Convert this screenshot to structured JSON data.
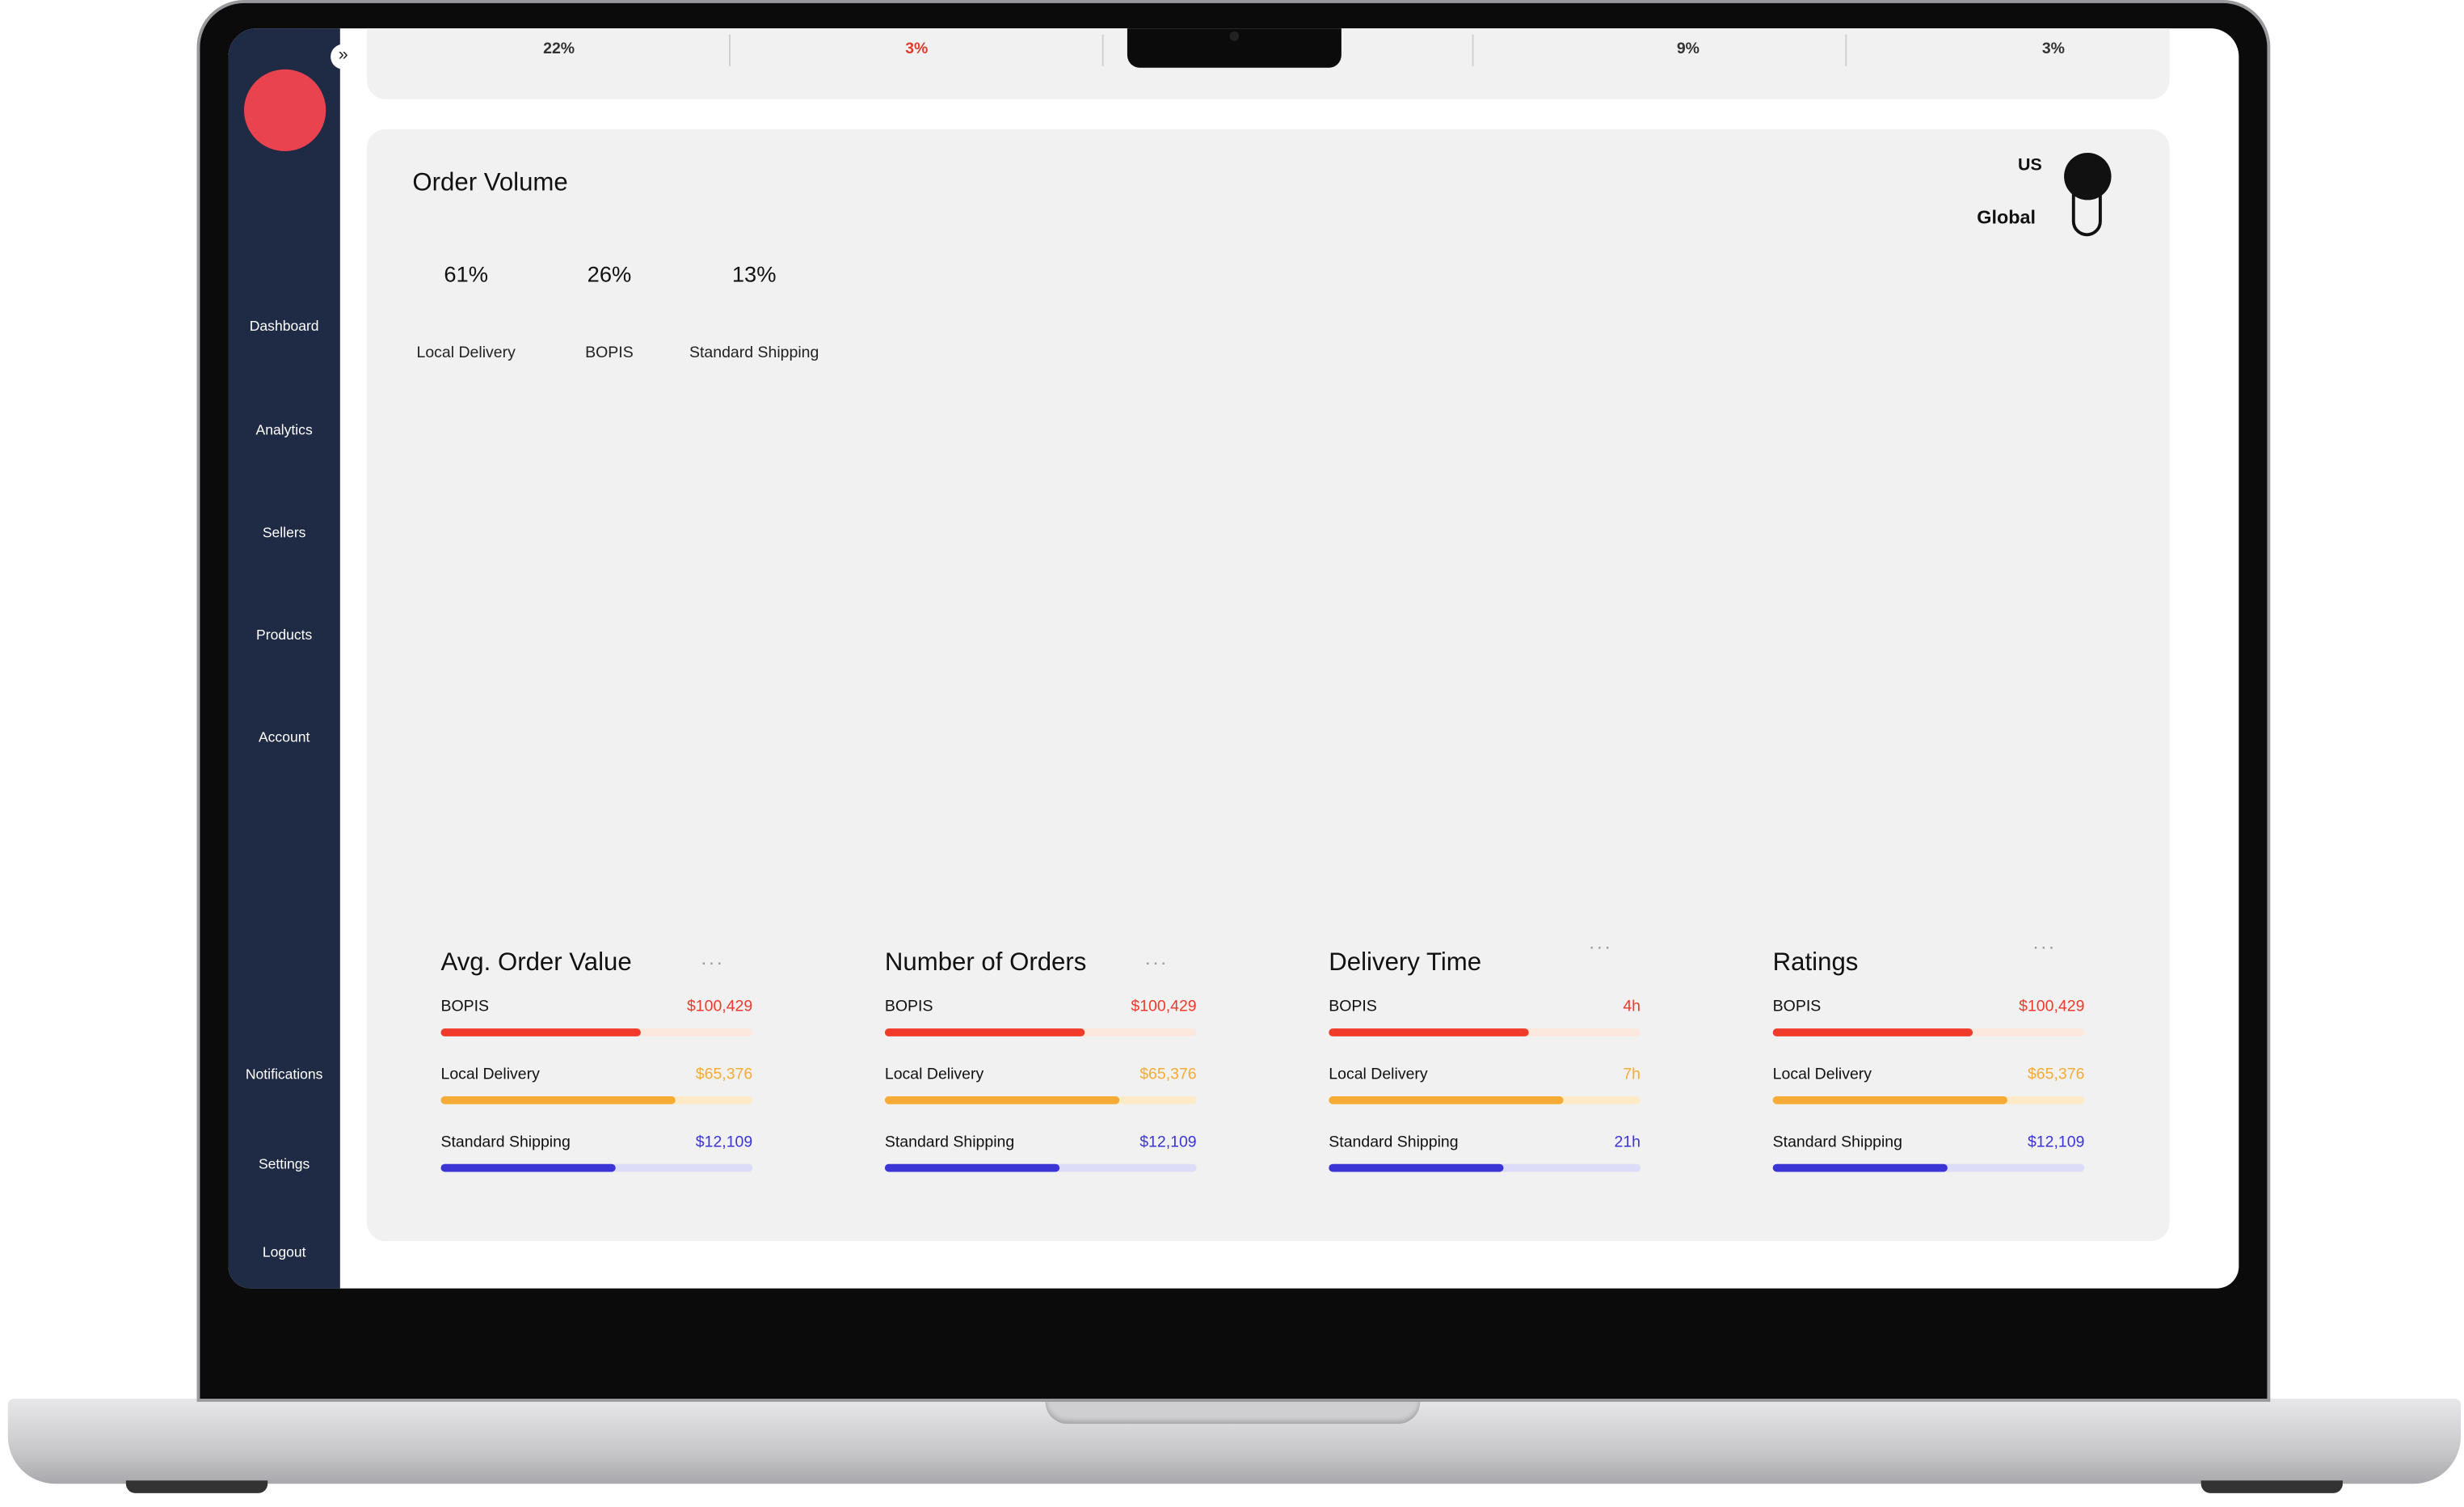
{
  "top_stats": [
    {
      "text": "22%",
      "direction": "up"
    },
    {
      "text": "3%",
      "direction": "down"
    },
    {
      "text": "9%",
      "direction": "up"
    },
    {
      "text": "3%",
      "direction": "up"
    }
  ],
  "sidebar": {
    "nav": [
      "Dashboard",
      "Analytics",
      "Sellers",
      "Products",
      "Account"
    ],
    "bottom_nav": [
      "Notifications",
      "Settings",
      "Logout"
    ]
  },
  "order_volume": {
    "title": "Order Volume",
    "rings": [
      {
        "value": 61,
        "label": "61%",
        "name": "Local Delivery"
      },
      {
        "value": 26,
        "label": "26%",
        "name": "BOPIS"
      },
      {
        "value": 13,
        "label": "13%",
        "name": "Standard Shipping"
      }
    ]
  },
  "region_toggle": {
    "options": [
      "US",
      "Global"
    ]
  },
  "metrics": [
    {
      "title": "Avg. Order Value",
      "rows": [
        {
          "name": "BOPIS",
          "value": "$100,429",
          "progress": 64
        },
        {
          "name": "Local Delivery",
          "value": "$65,376",
          "progress": 75
        },
        {
          "name": "Standard Shipping",
          "value": "$12,109",
          "progress": 56
        }
      ]
    },
    {
      "title": "Number of Orders",
      "rows": [
        {
          "name": "BOPIS",
          "value": "$100,429",
          "progress": 64
        },
        {
          "name": "Local Delivery",
          "value": "$65,376",
          "progress": 75
        },
        {
          "name": "Standard Shipping",
          "value": "$12,109",
          "progress": 56
        }
      ]
    },
    {
      "title": "Delivery Time",
      "rows": [
        {
          "name": "BOPIS",
          "value": "4h",
          "progress": 64
        },
        {
          "name": "Local Delivery",
          "value": "7h",
          "progress": 75
        },
        {
          "name": "Standard Shipping",
          "value": "21h",
          "progress": 56
        }
      ]
    },
    {
      "title": "Ratings",
      "rows": [
        {
          "name": "BOPIS",
          "value": "$100,429",
          "progress": 64
        },
        {
          "name": "Local Delivery",
          "value": "$65,376",
          "progress": 75
        },
        {
          "name": "Standard Shipping",
          "value": "$12,109",
          "progress": 56
        }
      ]
    }
  ]
}
